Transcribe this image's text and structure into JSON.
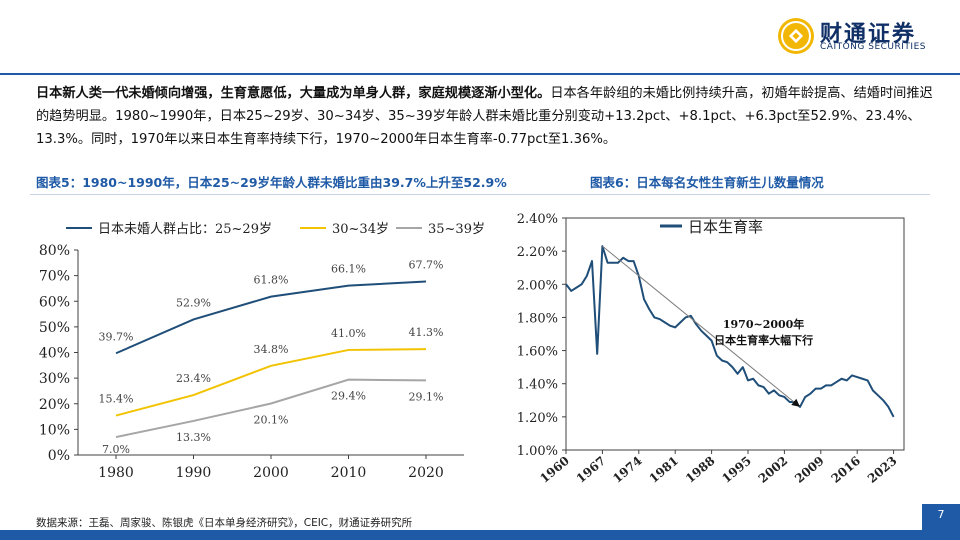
{
  "brand": {
    "name": "财通证券",
    "name_en": "CAITONG SECURITIES",
    "color": "#0f2f66",
    "accent": "#1f5aa6",
    "logo_icon": "caitong-coin-logo-icon"
  },
  "paragraph": {
    "bold_lead": "日本新人类一代未婚倾向增强，生育意愿低，大量成为单身人群，家庭规模逐渐小型化。",
    "rest": "日本各年龄组的未婚比例持续升高，初婚年龄提高、结婚时间推迟的趋势明显。1980~1990年，日本25~29岁、30~34岁、35~39岁年龄人群未婚比重分别变动+13.2pct、+8.1pct、+6.3pct至52.9%、23.4%、13.3%。同时，1970年以来日本生育率持续下行，1970~2000年日本生育率-0.77pct至1.36%。"
  },
  "figures": {
    "fig5_title": "图表5：1980~1990年，日本25~29岁年龄人群未婚比重由39.7%上升至52.9%",
    "fig6_title": "图表6：日本每名女性生育新生儿数量情况"
  },
  "chart_data": [
    {
      "type": "line",
      "x": [
        1980,
        1990,
        2000,
        2010,
        2020
      ],
      "series": [
        {
          "name": "日本未婚人群占比：25~29岁",
          "values": [
            39.7,
            52.9,
            61.8,
            66.1,
            67.7
          ],
          "color": "#1f4e79",
          "labels": [
            "39.7%",
            "52.9%",
            "61.8%",
            "66.1%",
            "67.7%"
          ]
        },
        {
          "name": "30~34岁",
          "values": [
            15.4,
            23.4,
            34.8,
            41.0,
            41.3
          ],
          "color": "#f2c300",
          "labels": [
            "15.4%",
            "23.4%",
            "34.8%",
            "41.0%",
            "41.3%"
          ]
        },
        {
          "name": "35~39岁",
          "values": [
            7.0,
            13.3,
            20.1,
            29.4,
            29.1
          ],
          "color": "#a6a6a6",
          "labels": [
            "7.0%",
            "13.3%",
            "20.1%",
            "29.4%",
            "29.1%"
          ]
        }
      ],
      "ylim": [
        0,
        80
      ],
      "yticks": [
        "0%",
        "10%",
        "20%",
        "30%",
        "40%",
        "50%",
        "60%",
        "70%",
        "80%"
      ],
      "xticks": [
        "1980",
        "1990",
        "2000",
        "2010",
        "2020"
      ],
      "legend": "top",
      "grid": false
    },
    {
      "type": "line",
      "series": [
        {
          "name": "日本生育率",
          "color": "#1f4e79",
          "points": [
            [
              1960,
              2.0
            ],
            [
              1961,
              1.96
            ],
            [
              1962,
              1.98
            ],
            [
              1963,
              2.0
            ],
            [
              1964,
              2.05
            ],
            [
              1965,
              2.14
            ],
            [
              1966,
              1.58
            ],
            [
              1967,
              2.23
            ],
            [
              1968,
              2.13
            ],
            [
              1969,
              2.13
            ],
            [
              1970,
              2.13
            ],
            [
              1971,
              2.16
            ],
            [
              1972,
              2.14
            ],
            [
              1973,
              2.14
            ],
            [
              1974,
              2.05
            ],
            [
              1975,
              1.91
            ],
            [
              1976,
              1.85
            ],
            [
              1977,
              1.8
            ],
            [
              1978,
              1.79
            ],
            [
              1979,
              1.77
            ],
            [
              1980,
              1.75
            ],
            [
              1981,
              1.74
            ],
            [
              1982,
              1.77
            ],
            [
              1983,
              1.8
            ],
            [
              1984,
              1.81
            ],
            [
              1985,
              1.76
            ],
            [
              1986,
              1.72
            ],
            [
              1987,
              1.69
            ],
            [
              1988,
              1.66
            ],
            [
              1989,
              1.57
            ],
            [
              1990,
              1.54
            ],
            [
              1991,
              1.53
            ],
            [
              1992,
              1.5
            ],
            [
              1993,
              1.46
            ],
            [
              1994,
              1.5
            ],
            [
              1995,
              1.42
            ],
            [
              1996,
              1.43
            ],
            [
              1997,
              1.39
            ],
            [
              1998,
              1.38
            ],
            [
              1999,
              1.34
            ],
            [
              2000,
              1.36
            ],
            [
              2001,
              1.33
            ],
            [
              2002,
              1.32
            ],
            [
              2003,
              1.29
            ],
            [
              2004,
              1.29
            ],
            [
              2005,
              1.26
            ],
            [
              2006,
              1.32
            ],
            [
              2007,
              1.34
            ],
            [
              2008,
              1.37
            ],
            [
              2009,
              1.37
            ],
            [
              2010,
              1.39
            ],
            [
              2011,
              1.39
            ],
            [
              2012,
              1.41
            ],
            [
              2013,
              1.43
            ],
            [
              2014,
              1.42
            ],
            [
              2015,
              1.45
            ],
            [
              2016,
              1.44
            ],
            [
              2017,
              1.43
            ],
            [
              2018,
              1.42
            ],
            [
              2019,
              1.36
            ],
            [
              2020,
              1.33
            ],
            [
              2021,
              1.3
            ],
            [
              2022,
              1.26
            ],
            [
              2023,
              1.2
            ]
          ]
        }
      ],
      "trend_arrow": {
        "from": [
          1967,
          2.23
        ],
        "to": [
          2005,
          1.26
        ],
        "color": "#7f7f7f"
      },
      "annotation": {
        "line1": "1970~2000年",
        "line2": "日本生育率大幅下行",
        "at": [
          1998,
          1.7
        ]
      },
      "ylim": [
        1.0,
        2.4
      ],
      "yticks": [
        "1.00%",
        "1.20%",
        "1.40%",
        "1.60%",
        "1.80%",
        "2.00%",
        "2.20%",
        "2.40%"
      ],
      "xlim": [
        1960,
        2025
      ],
      "xticks": [
        "1960",
        "1967",
        "1974",
        "1981",
        "1988",
        "1995",
        "2002",
        "2009",
        "2016",
        "2023"
      ],
      "legend": "top-right",
      "grid": false
    }
  ],
  "source": "数据来源：王磊、周家骏、陈银虎《日本单身经济研究》，CEIC，财通证券研究所",
  "page_number": "7"
}
